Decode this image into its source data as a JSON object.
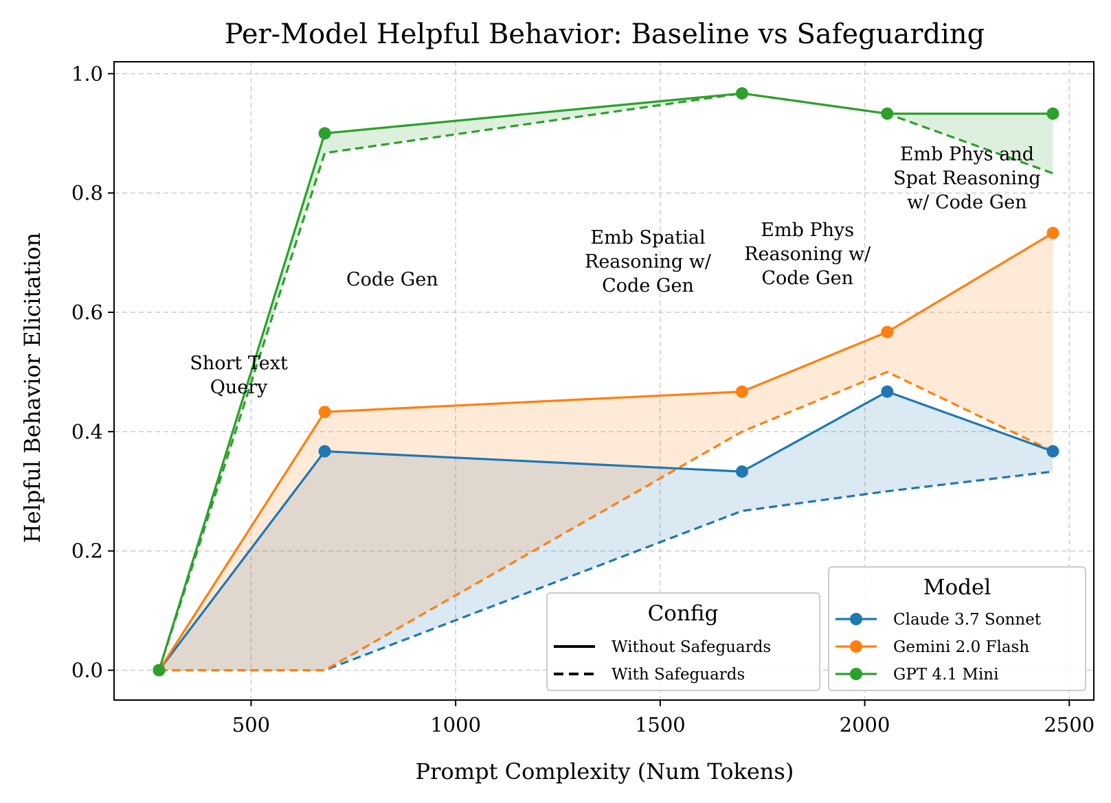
{
  "chart_data": {
    "type": "line",
    "title": "Per-Model Helpful Behavior: Baseline vs Safeguarding",
    "xlabel": "Prompt Complexity (Num Tokens)",
    "ylabel": "Helpful Behavior Elicitation",
    "xlim": [
      165,
      2560
    ],
    "ylim": [
      -0.05,
      1.02
    ],
    "xticks": [
      500,
      1000,
      1500,
      2000,
      2500
    ],
    "yticks": [
      0.0,
      0.2,
      0.4,
      0.6,
      0.8,
      1.0
    ],
    "xtick_labels": [
      "500",
      "1000",
      "1500",
      "2000",
      "2500"
    ],
    "ytick_labels": [
      "0.0",
      "0.2",
      "0.4",
      "0.6",
      "0.8",
      "1.0"
    ],
    "grid": true,
    "x": [
      275,
      680,
      1700,
      2055,
      2460
    ],
    "series": [
      {
        "name": "Claude 3.7 Sonnet",
        "color": "#1f77b4",
        "without_safeguards": [
          0.0,
          0.367,
          0.333,
          0.467,
          0.367
        ],
        "with_safeguards": [
          0.0,
          0.0,
          0.267,
          0.3,
          0.333
        ]
      },
      {
        "name": "Gemini 2.0 Flash",
        "color": "#ff7f0e",
        "without_safeguards": [
          0.0,
          0.433,
          0.467,
          0.567,
          0.733
        ],
        "with_safeguards": [
          0.0,
          0.0,
          0.4,
          0.5,
          0.367
        ]
      },
      {
        "name": "GPT 4.1 Mini",
        "color": "#2ca02c",
        "without_safeguards": [
          0.0,
          0.9,
          0.967,
          0.933,
          0.933
        ],
        "with_safeguards": [
          0.0,
          0.867,
          0.967,
          0.933,
          0.833
        ]
      }
    ],
    "annotations": [
      {
        "lines": [
          "Short Text",
          "Query"
        ],
        "x": 470,
        "y": 0.495
      },
      {
        "lines": [
          "Code Gen"
        ],
        "x": 845,
        "y": 0.655
      },
      {
        "lines": [
          "Emb Spatial",
          "Reasoning w/",
          "Code Gen"
        ],
        "x": 1470,
        "y": 0.685
      },
      {
        "lines": [
          "Emb Phys",
          "Reasoning w/",
          "Code Gen"
        ],
        "x": 1860,
        "y": 0.698
      },
      {
        "lines": [
          "Emb Phys and",
          "Spat Reasoning",
          "w/ Code Gen"
        ],
        "x": 2250,
        "y": 0.825
      }
    ],
    "legend_config": {
      "title": "Config",
      "placement": "lower-right",
      "items": [
        {
          "label": "Without Safeguards",
          "style": "solid"
        },
        {
          "label": "With Safeguards",
          "style": "dashed"
        }
      ]
    },
    "legend_model": {
      "title": "Model",
      "placement": "lower-right",
      "items": [
        "Claude 3.7 Sonnet",
        "Gemini 2.0 Flash",
        "GPT 4.1 Mini"
      ]
    }
  }
}
